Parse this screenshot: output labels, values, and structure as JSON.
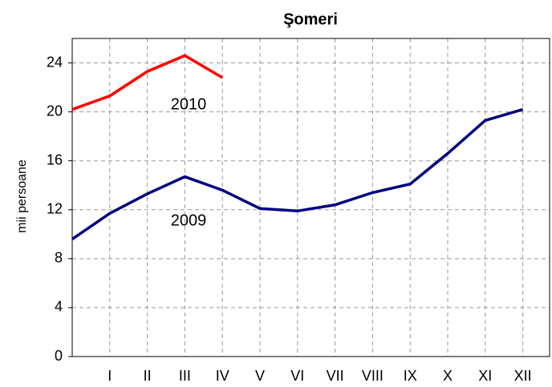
{
  "chart_data": {
    "type": "line",
    "title": "Şomeri",
    "ylabel": "mii persoane",
    "categories": [
      null,
      "I",
      "II",
      "III",
      "IV",
      "V",
      "VI",
      "VII",
      "VIII",
      "IX",
      "X",
      "XI",
      "XII"
    ],
    "series": [
      {
        "name": "2010",
        "color": "#ff0000",
        "values": [
          20.2,
          21.3,
          23.3,
          24.6,
          22.8,
          null,
          null,
          null,
          null,
          null,
          null,
          null,
          null
        ]
      },
      {
        "name": "2009",
        "color": "#000080",
        "values": [
          9.6,
          11.7,
          13.3,
          14.7,
          13.6,
          12.1,
          11.9,
          12.4,
          13.4,
          14.1,
          16.6,
          19.3,
          20.2
        ]
      }
    ],
    "ylim": [
      0,
      26
    ],
    "yticks": [
      0,
      4,
      8,
      12,
      16,
      20,
      24
    ],
    "grid": true
  }
}
